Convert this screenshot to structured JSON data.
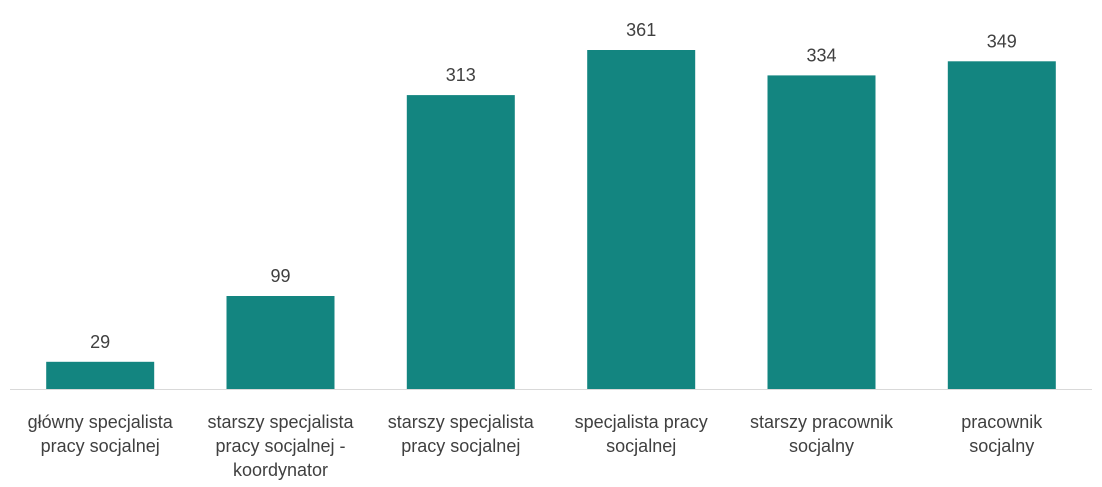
{
  "chart_data": {
    "type": "bar",
    "categories": [
      [
        "główny specjalista",
        "pracy socjalnej"
      ],
      [
        "starszy specjalista",
        "pracy socjalnej -",
        "koordynator"
      ],
      [
        "starszy specjalista",
        "pracy socjalnej"
      ],
      [
        "specjalista pracy",
        "socjalnej"
      ],
      [
        "starszy pracownik",
        "socjalny"
      ],
      [
        "pracownik",
        "socjalny"
      ]
    ],
    "values": [
      29,
      99,
      313,
      361,
      334,
      349
    ],
    "data_labels": [
      "29",
      "99",
      "313",
      "361",
      "334",
      "349"
    ],
    "title": "",
    "xlabel": "",
    "ylabel": "",
    "ylim": [
      0,
      361
    ],
    "grid": false,
    "legend": "none",
    "colors": {
      "bar": "#138580",
      "axis": "#d9d9d9",
      "text": "#404040"
    }
  }
}
